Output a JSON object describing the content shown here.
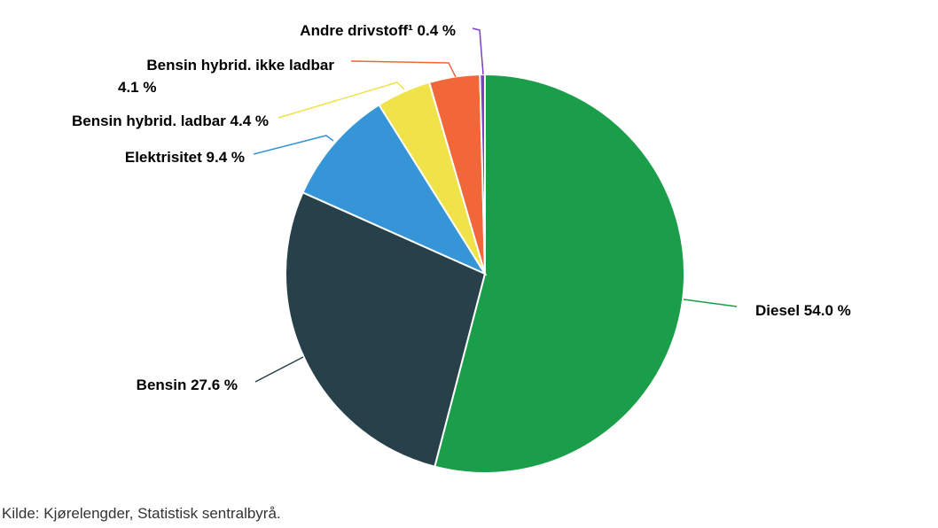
{
  "chart_data": {
    "type": "pie",
    "title": "",
    "slices": [
      {
        "label": "Diesel",
        "value": 54.0,
        "display": "54.0 %",
        "color": "#1a9e4a"
      },
      {
        "label": "Bensin",
        "value": 27.6,
        "display": "27.6 %",
        "color": "#274049"
      },
      {
        "label": "Elektrisitet",
        "value": 9.4,
        "display": "9.4 %",
        "color": "#3595d6"
      },
      {
        "label": "Bensin hybrid. ladbar",
        "value": 4.4,
        "display": "4.4 %",
        "color": "#f0e34a"
      },
      {
        "label": "Bensin hybrid. ikke ladbar",
        "value": 4.1,
        "display": "4.1 %",
        "color": "#f26739"
      },
      {
        "label": "Andre drivstoff¹",
        "value": 0.4,
        "display": "0.4 %",
        "color": "#7a3ec8"
      }
    ],
    "legend": "none",
    "start_angle": "top, clockwise"
  },
  "source": "Kilde: Kjørelengder, Statistisk sentralbyrå."
}
